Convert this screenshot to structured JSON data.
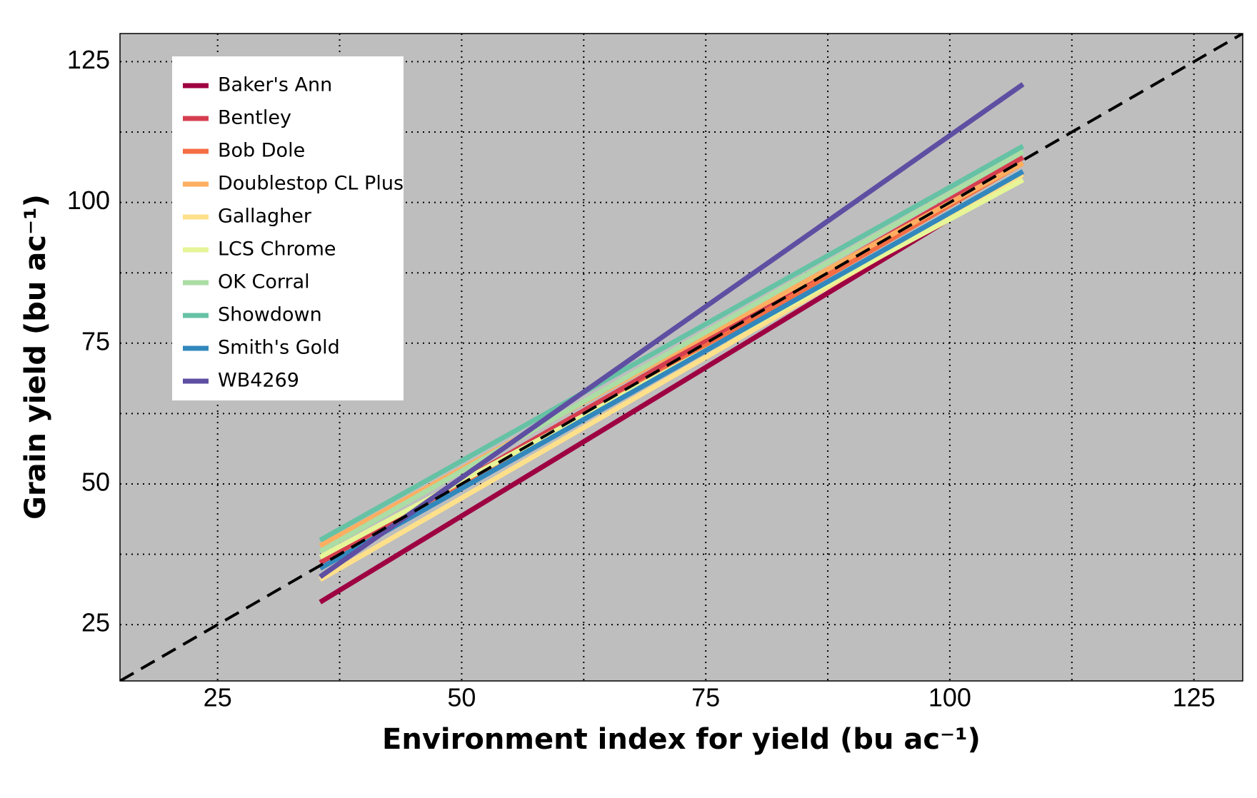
{
  "chart_data": {
    "type": "line",
    "x_label": "Environment index for yield (bu ac⁻¹)",
    "y_label": "Grain yield (bu ac⁻¹)",
    "x": [
      35.5,
      107.5
    ],
    "series": [
      {
        "name": "Baker's Ann",
        "color": "#9e0142",
        "values": [
          29,
          105
        ]
      },
      {
        "name": "Bentley",
        "color": "#d53e4f",
        "values": [
          36,
          108
        ]
      },
      {
        "name": "Bob Dole",
        "color": "#f46d43",
        "values": [
          35,
          107
        ]
      },
      {
        "name": "Doublestop CL Plus",
        "color": "#fdae61",
        "values": [
          39,
          107
        ]
      },
      {
        "name": "Gallagher",
        "color": "#fee08b",
        "values": [
          33,
          105
        ]
      },
      {
        "name": "LCS Chrome",
        "color": "#e6f598",
        "values": [
          37,
          104
        ]
      },
      {
        "name": "OK Corral",
        "color": "#abdda4",
        "values": [
          38,
          109
        ]
      },
      {
        "name": "Showdown",
        "color": "#66c2a5",
        "values": [
          40,
          110
        ]
      },
      {
        "name": "Smith's Gold",
        "color": "#3288bd",
        "values": [
          35,
          105.5
        ]
      },
      {
        "name": "WB4269",
        "color": "#5e4fa2",
        "values": [
          33.5,
          121
        ]
      }
    ],
    "xlim": [
      15,
      130
    ],
    "ylim": [
      15,
      130
    ],
    "xticks": [
      25,
      50,
      75,
      100,
      125
    ],
    "yticks": [
      25,
      50,
      75,
      100,
      125
    ],
    "x_minor_ticks": [
      37.5,
      62.5,
      87.5,
      112.5
    ],
    "y_minor_ticks": [
      37.5,
      62.5,
      87.5,
      112.5
    ],
    "grid": true,
    "identity_line": true,
    "legend_position": "upper left",
    "background": "#bebebe"
  }
}
